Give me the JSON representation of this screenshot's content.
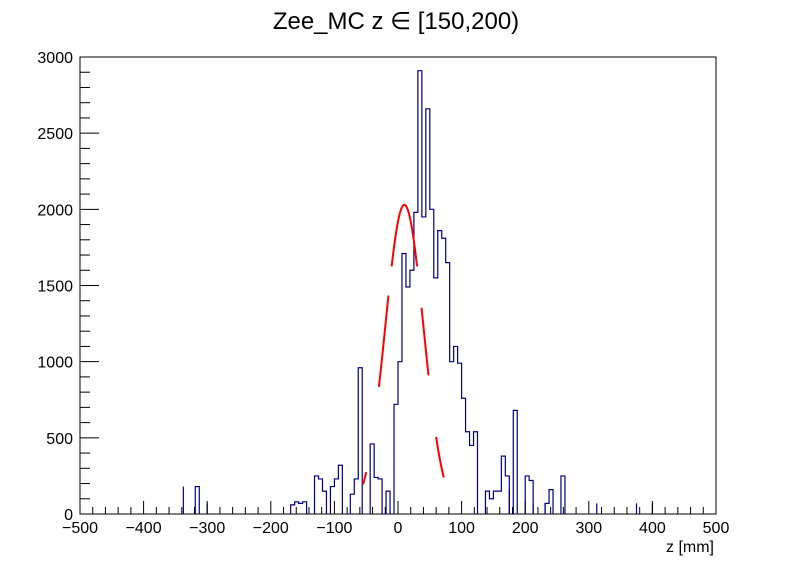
{
  "chart_data": {
    "type": "histogram",
    "title": "Zee_MC z ∈ [150,200)",
    "xlabel": "z [mm]",
    "ylabel": "",
    "xlim": [
      -500,
      500
    ],
    "ylim": [
      0,
      3000
    ],
    "x_ticks": [
      -500,
      -400,
      -300,
      -200,
      -100,
      0,
      100,
      200,
      300,
      400,
      500
    ],
    "x_tick_labels": [
      "−500",
      "−400",
      "−300",
      "−200",
      "−100",
      "0",
      "100",
      "200",
      "300",
      "400",
      "500"
    ],
    "y_ticks": [
      0,
      500,
      1000,
      1500,
      2000,
      2500,
      3000
    ],
    "y_tick_labels": [
      "0",
      "500",
      "1000",
      "1500",
      "2000",
      "2500",
      "3000"
    ],
    "grid": false,
    "colors": {
      "histogram": "#000080",
      "fit": "#ff0000",
      "frame": "#000000"
    },
    "histogram": {
      "bin_width": 6.25,
      "bin_edges_start": -500,
      "values": [
        0,
        0,
        0,
        0,
        0,
        0,
        0,
        0,
        0,
        0,
        0,
        0,
        0,
        0,
        0,
        0,
        0,
        0,
        0,
        0,
        0,
        0,
        0,
        0,
        0,
        0,
        0,
        0,
        0,
        180,
        0,
        0,
        0,
        0,
        0,
        0,
        0,
        0,
        0,
        0,
        0,
        0,
        0,
        0,
        0,
        0,
        0,
        0,
        0,
        0,
        0,
        0,
        0,
        60,
        80,
        70,
        80,
        0,
        0,
        250,
        230,
        150,
        0,
        180,
        230,
        320,
        0,
        0,
        130,
        230,
        960,
        0,
        0,
        460,
        240,
        230,
        0,
        150,
        0,
        720,
        1000,
        1710,
        1490,
        1600,
        1980,
        2910,
        1950,
        2660,
        2000,
        1550,
        1860,
        1810,
        1650,
        1000,
        1100,
        990,
        760,
        540,
        450,
        540,
        0,
        0,
        150,
        100,
        150,
        150,
        380,
        250,
        0,
        680,
        0,
        0,
        250,
        220,
        0,
        0,
        0,
        70,
        160,
        0,
        0,
        250,
        0,
        0,
        0,
        0,
        0,
        0,
        0,
        0,
        0,
        0,
        0,
        0,
        0,
        0,
        0,
        0,
        0,
        0,
        0,
        0,
        0,
        0,
        0,
        0,
        0,
        0,
        0,
        0,
        0,
        0,
        0,
        0,
        0,
        0,
        0,
        0,
        0,
        0,
        0,
        0,
        0,
        0,
        0,
        0,
        0,
        0,
        0,
        0,
        0,
        0,
        0,
        0,
        0,
        0,
        0,
        0,
        0,
        0,
        0,
        0,
        0,
        0
      ]
    },
    "sparse_entries": [
      {
        "x": -337.5,
        "y": 180
      },
      {
        "x": -300,
        "y": 70
      },
      {
        "x": 175,
        "y": 160
      },
      {
        "x": 212.5,
        "y": 70
      },
      {
        "x": 231.25,
        "y": 70
      },
      {
        "x": 312.5,
        "y": 70
      },
      {
        "x": 375,
        "y": 70
      },
      {
        "x": 400,
        "y": 70
      }
    ],
    "fit": {
      "mean": 10,
      "sigma": 30,
      "amplitude": 2030,
      "segments": [
        [
          -55,
          -50
        ],
        [
          -30,
          -15
        ],
        [
          -10,
          30
        ],
        [
          37,
          48
        ],
        [
          60,
          72
        ]
      ]
    }
  }
}
